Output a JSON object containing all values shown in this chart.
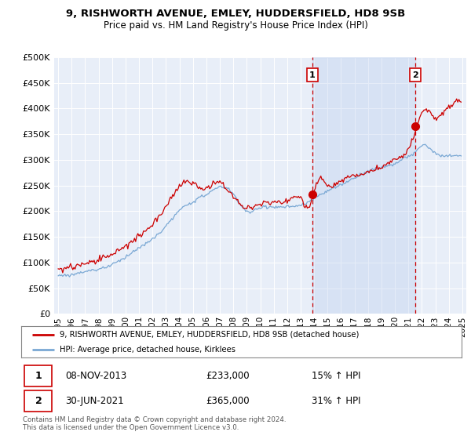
{
  "title": "9, RISHWORTH AVENUE, EMLEY, HUDDERSFIELD, HD8 9SB",
  "subtitle": "Price paid vs. HM Land Registry's House Price Index (HPI)",
  "background_color": "#ffffff",
  "plot_bg_color": "#e8eef8",
  "shade_color": "#d0ddf5",
  "grid_color": "#ffffff",
  "red_line_color": "#cc0000",
  "blue_line_color": "#7aa8d4",
  "vline_color": "#cc0000",
  "sale1_x": 2013.86,
  "sale1_y": 233000,
  "sale1_label": "1",
  "sale2_x": 2021.5,
  "sale2_y": 365000,
  "sale2_label": "2",
  "legend_line1": "9, RISHWORTH AVENUE, EMLEY, HUDDERSFIELD, HD8 9SB (detached house)",
  "legend_line2": "HPI: Average price, detached house, Kirklees",
  "table_row1": [
    "1",
    "08-NOV-2013",
    "£233,000",
    "15% ↑ HPI"
  ],
  "table_row2": [
    "2",
    "30-JUN-2021",
    "£365,000",
    "31% ↑ HPI"
  ],
  "footnote": "Contains HM Land Registry data © Crown copyright and database right 2024.\nThis data is licensed under the Open Government Licence v3.0.",
  "ylim": [
    0,
    500000
  ],
  "yticks": [
    0,
    50000,
    100000,
    150000,
    200000,
    250000,
    300000,
    350000,
    400000,
    450000,
    500000
  ],
  "xmin": 1994.7,
  "xmax": 2025.3
}
